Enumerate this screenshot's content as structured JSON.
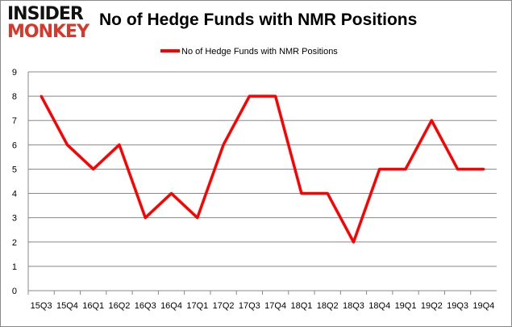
{
  "logo": {
    "line1": "INSIDER",
    "line2": "MONKEY"
  },
  "chart_data": {
    "type": "line",
    "title": "No of Hedge Funds with NMR Positions",
    "categories": [
      "15Q3",
      "15Q4",
      "16Q1",
      "16Q2",
      "16Q3",
      "16Q4",
      "17Q1",
      "17Q2",
      "17Q3",
      "17Q4",
      "18Q1",
      "18Q2",
      "18Q3",
      "18Q4",
      "19Q1",
      "19Q2",
      "19Q3",
      "19Q4"
    ],
    "series": [
      {
        "name": "No of Hedge Funds with NMR Positions",
        "values": [
          8,
          6,
          5,
          6,
          3,
          4,
          3,
          6,
          8,
          8,
          4,
          4,
          2,
          5,
          5,
          7,
          5,
          5
        ],
        "color": "#ff0000"
      }
    ],
    "ylim": [
      0,
      9
    ],
    "yticks": [
      "0",
      "1",
      "2",
      "3",
      "4",
      "5",
      "6",
      "7",
      "8",
      "9"
    ],
    "grid": true,
    "legend": "top"
  }
}
